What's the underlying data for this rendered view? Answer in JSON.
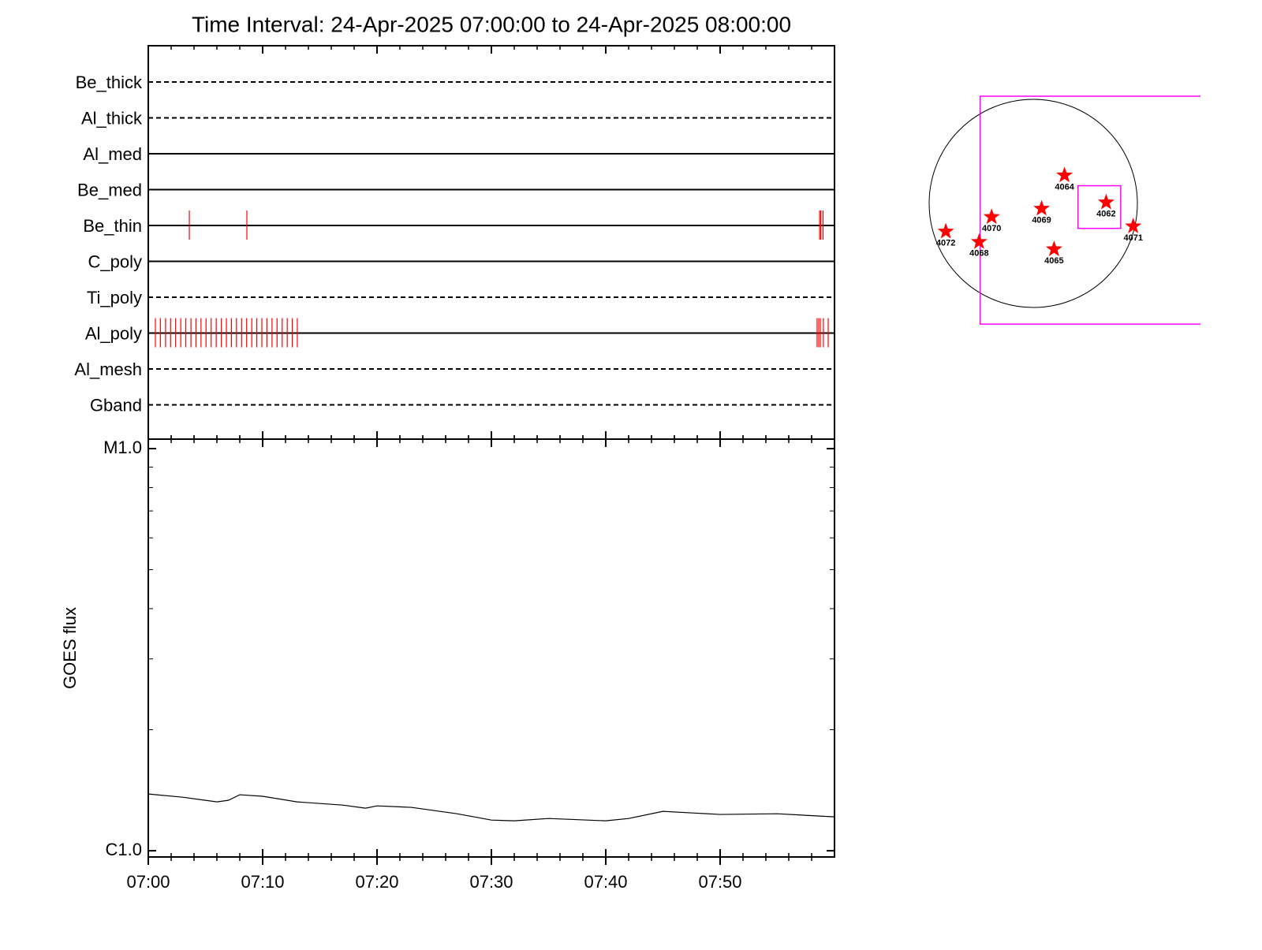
{
  "chart_data": [
    {
      "type": "event",
      "title": "Time Interval: 24-Apr-2025 07:00:00 to 24-Apr-2025 08:00:00",
      "xlim": [
        0,
        60
      ],
      "xticks": [
        0,
        10,
        20,
        30,
        40,
        50
      ],
      "xminor_step": 2,
      "event_color": "#ff0000",
      "channels": [
        {
          "name": "Be_thick",
          "style": "dashed",
          "events": []
        },
        {
          "name": "Al_thick",
          "style": "dashed",
          "events": []
        },
        {
          "name": "Al_med",
          "style": "solid",
          "events": []
        },
        {
          "name": "Be_med",
          "style": "solid",
          "events": []
        },
        {
          "name": "Be_thin",
          "style": "solid",
          "events": [
            3.59,
            8.62,
            58.7,
            58.8,
            59.0
          ]
        },
        {
          "name": "C_poly",
          "style": "solid",
          "events": []
        },
        {
          "name": "Ti_poly",
          "style": "dashed",
          "events": []
        },
        {
          "name": "Al_poly",
          "style": "solid",
          "events": [
            0.62,
            1.06,
            1.51,
            1.95,
            2.39,
            2.84,
            3.28,
            3.73,
            4.17,
            4.61,
            5.05,
            5.5,
            5.94,
            6.39,
            6.83,
            7.27,
            7.71,
            8.16,
            8.6,
            9.05,
            9.49,
            9.93,
            10.37,
            10.82,
            11.26,
            11.71,
            12.15,
            12.59,
            13.03,
            58.48,
            58.62,
            58.76,
            59.03,
            59.45
          ]
        },
        {
          "name": "Al_mesh",
          "style": "dashed",
          "events": []
        },
        {
          "name": "Gband",
          "style": "dashed",
          "events": []
        }
      ]
    },
    {
      "type": "line",
      "y_label": "GOES flux",
      "log_y": true,
      "xlim": [
        0,
        60
      ],
      "xticks": [
        {
          "value": 0,
          "label": "07:00"
        },
        {
          "value": 10,
          "label": "07:10"
        },
        {
          "value": 20,
          "label": "07:20"
        },
        {
          "value": 30,
          "label": "07:30"
        },
        {
          "value": 40,
          "label": "07:40"
        },
        {
          "value": 50,
          "label": "07:50"
        }
      ],
      "xminor_step": 2,
      "ylim": [
        9.65e-07,
        1.056e-05
      ],
      "yticks": [
        {
          "value": 1e-06,
          "label": "C1.0"
        },
        {
          "value": 1e-05,
          "label": "M1.0"
        }
      ],
      "x": [
        0,
        3,
        6,
        7,
        8,
        10,
        13,
        17,
        19,
        20,
        23,
        27,
        30,
        32,
        35,
        40,
        42,
        45,
        50,
        55,
        60
      ],
      "series": [
        {
          "color": "#000000",
          "values": [
            1.384e-06,
            1.359e-06,
            1.323e-06,
            1.335e-06,
            1.378e-06,
            1.366e-06,
            1.323e-06,
            1.299e-06,
            1.276e-06,
            1.293e-06,
            1.282e-06,
            1.236e-06,
            1.192e-06,
            1.187e-06,
            1.203e-06,
            1.187e-06,
            1.203e-06,
            1.253e-06,
            1.231e-06,
            1.236e-06,
            1.214e-06
          ]
        }
      ]
    },
    {
      "type": "map",
      "marker_color": "#ff0000",
      "regions": [
        {
          "name": "4064",
          "x": 0.3,
          "y": 0.27
        },
        {
          "name": "4062",
          "x": 0.7,
          "y": 0.01
        },
        {
          "name": "4069",
          "x": 0.08,
          "y": -0.05
        },
        {
          "name": "4070",
          "x": -0.4,
          "y": -0.13
        },
        {
          "name": "4072",
          "x": -0.84,
          "y": -0.27
        },
        {
          "name": "4068",
          "x": -0.52,
          "y": -0.37
        },
        {
          "name": "4065",
          "x": 0.2,
          "y": -0.44
        },
        {
          "name": "4071",
          "x": 0.96,
          "y": -0.22
        }
      ],
      "fov": [
        {
          "color": "#ff00ff",
          "x": [
            -0.51,
            1.7
          ],
          "y": [
            -1.16,
            1.03
          ]
        },
        {
          "color": "#ff00ff",
          "x": [
            0.43,
            0.84
          ],
          "y": [
            -0.24,
            0.17
          ]
        }
      ]
    }
  ]
}
